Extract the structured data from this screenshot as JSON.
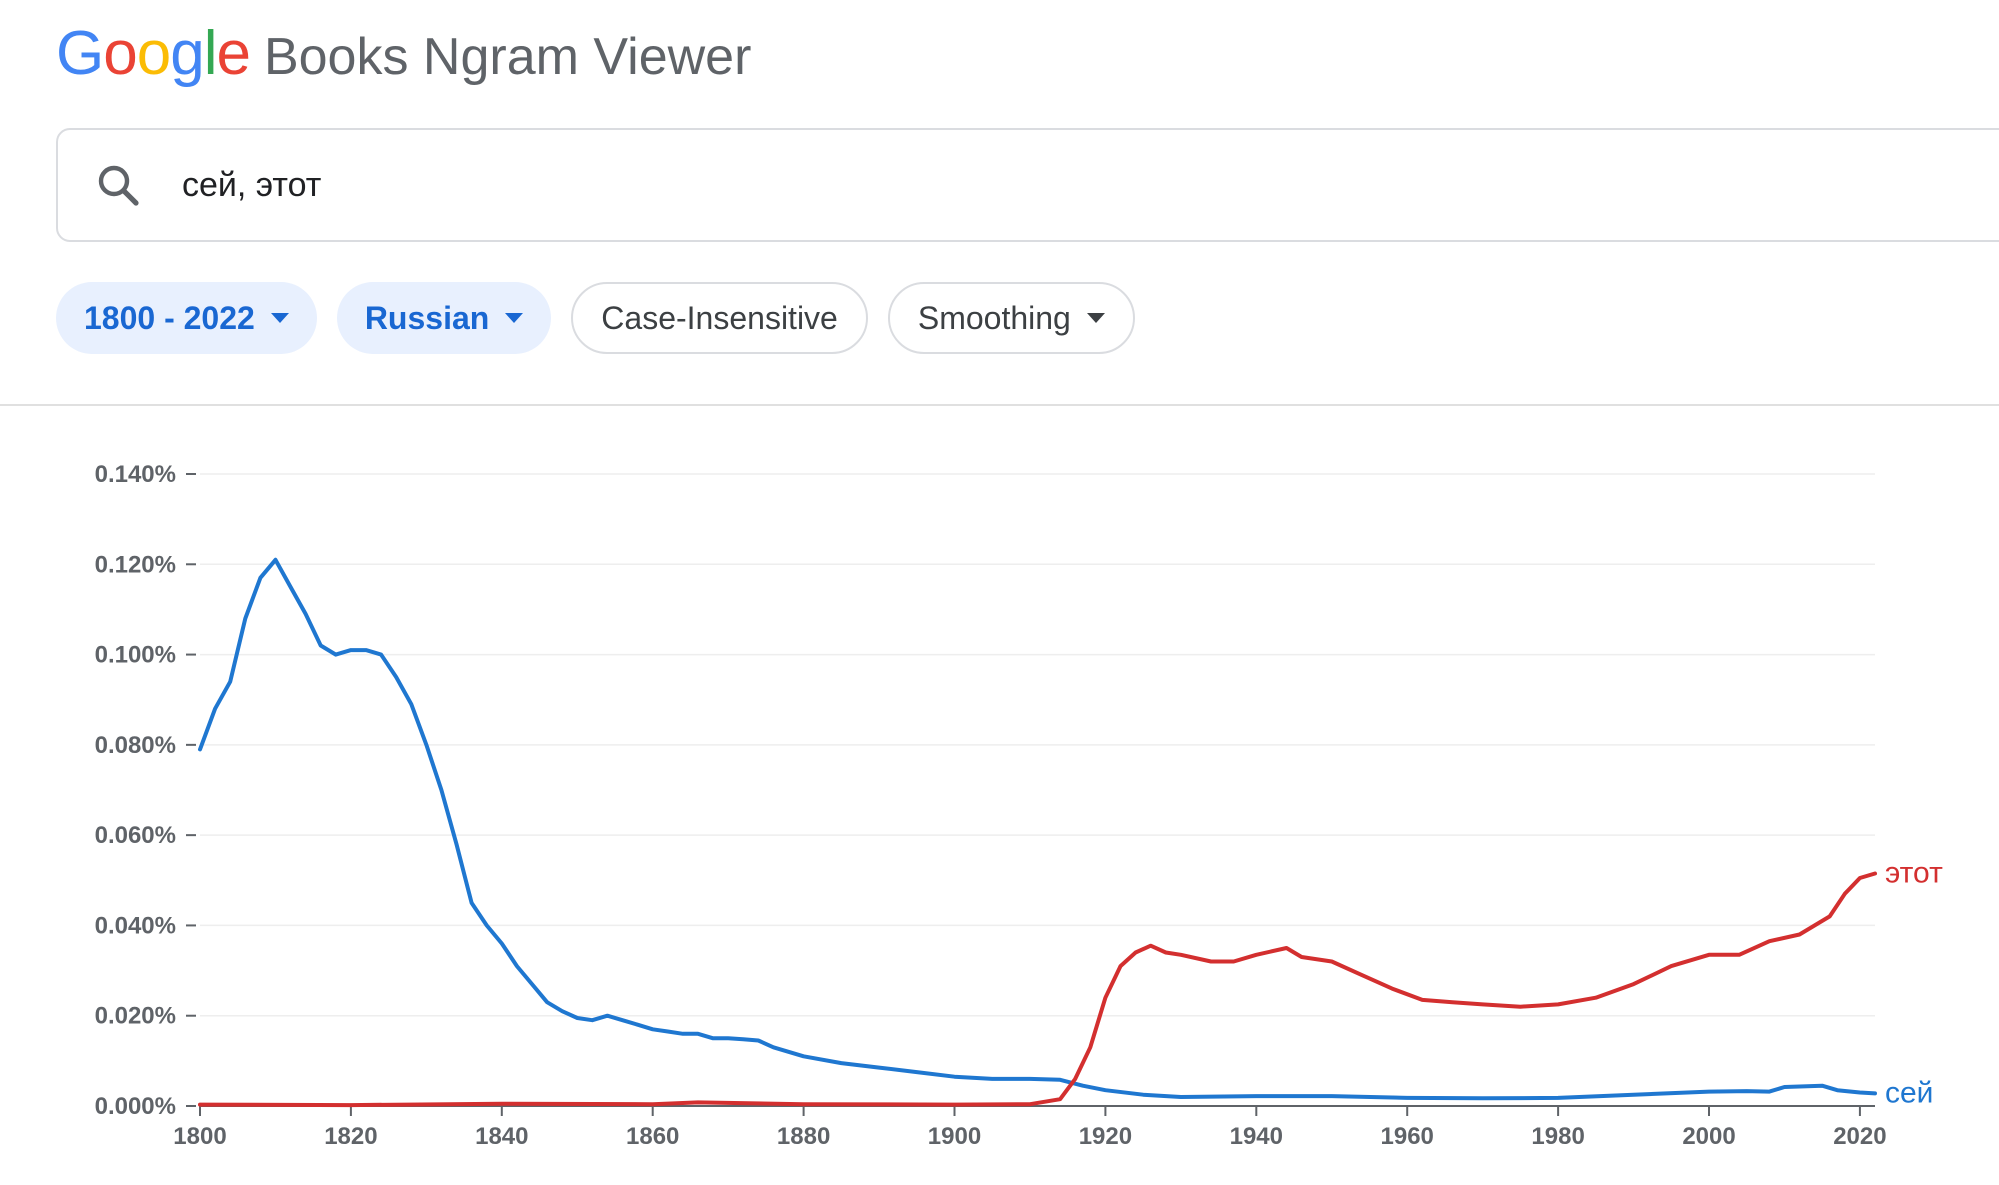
{
  "header": {
    "logo_text": "Google",
    "logo_colors": [
      "#4285F4",
      "#EA4335",
      "#FBBC05",
      "#4285F4",
      "#34A853",
      "#EA4335"
    ],
    "product_name": "Books Ngram Viewer"
  },
  "search": {
    "icon": "search-icon",
    "query": "сей, этот"
  },
  "filters": {
    "year_range": "1800 - 2022",
    "corpus": "Russian",
    "case_insensitive": "Case-Insensitive",
    "smoothing": "Smoothing"
  },
  "colors": {
    "accent_blue": "#1967d2",
    "chip_bg": "#e8f0fe",
    "series_blue": "#1f77d0",
    "series_red": "#d32f2f"
  },
  "chart_data": {
    "type": "line",
    "xlim": [
      1800,
      2022
    ],
    "ylim": [
      0,
      0.14
    ],
    "y_ticks": [
      "0.000%",
      "0.020%",
      "0.040%",
      "0.060%",
      "0.080%",
      "0.100%",
      "0.120%",
      "0.140%"
    ],
    "y_tick_values": [
      0,
      0.02,
      0.04,
      0.06,
      0.08,
      0.1,
      0.12,
      0.14
    ],
    "x_ticks": [
      1800,
      1820,
      1840,
      1860,
      1880,
      1900,
      1920,
      1940,
      1960,
      1980,
      2000,
      2020
    ],
    "grid": true,
    "series": [
      {
        "name": "сей",
        "color": "#1f77d0",
        "points": [
          [
            1800,
            0.079
          ],
          [
            1802,
            0.088
          ],
          [
            1804,
            0.094
          ],
          [
            1806,
            0.108
          ],
          [
            1808,
            0.117
          ],
          [
            1810,
            0.121
          ],
          [
            1812,
            0.115
          ],
          [
            1814,
            0.109
          ],
          [
            1816,
            0.102
          ],
          [
            1818,
            0.1
          ],
          [
            1820,
            0.101
          ],
          [
            1822,
            0.101
          ],
          [
            1824,
            0.1
          ],
          [
            1826,
            0.095
          ],
          [
            1828,
            0.089
          ],
          [
            1830,
            0.08
          ],
          [
            1832,
            0.07
          ],
          [
            1834,
            0.058
          ],
          [
            1836,
            0.045
          ],
          [
            1838,
            0.04
          ],
          [
            1840,
            0.036
          ],
          [
            1842,
            0.031
          ],
          [
            1844,
            0.027
          ],
          [
            1846,
            0.023
          ],
          [
            1848,
            0.021
          ],
          [
            1850,
            0.0195
          ],
          [
            1852,
            0.019
          ],
          [
            1854,
            0.02
          ],
          [
            1856,
            0.019
          ],
          [
            1858,
            0.018
          ],
          [
            1860,
            0.017
          ],
          [
            1862,
            0.0165
          ],
          [
            1864,
            0.016
          ],
          [
            1866,
            0.016
          ],
          [
            1868,
            0.015
          ],
          [
            1870,
            0.015
          ],
          [
            1872,
            0.0148
          ],
          [
            1874,
            0.0145
          ],
          [
            1876,
            0.013
          ],
          [
            1878,
            0.012
          ],
          [
            1880,
            0.011
          ],
          [
            1885,
            0.0095
          ],
          [
            1890,
            0.0085
          ],
          [
            1895,
            0.0075
          ],
          [
            1900,
            0.0065
          ],
          [
            1905,
            0.006
          ],
          [
            1910,
            0.006
          ],
          [
            1914,
            0.0058
          ],
          [
            1917,
            0.0045
          ],
          [
            1920,
            0.0035
          ],
          [
            1925,
            0.0025
          ],
          [
            1930,
            0.002
          ],
          [
            1940,
            0.0022
          ],
          [
            1950,
            0.0022
          ],
          [
            1960,
            0.0018
          ],
          [
            1970,
            0.0017
          ],
          [
            1980,
            0.0018
          ],
          [
            1990,
            0.0025
          ],
          [
            2000,
            0.0032
          ],
          [
            2005,
            0.0033
          ],
          [
            2008,
            0.0032
          ],
          [
            2010,
            0.0042
          ],
          [
            2015,
            0.0045
          ],
          [
            2017,
            0.0035
          ],
          [
            2020,
            0.003
          ],
          [
            2022,
            0.0028
          ]
        ]
      },
      {
        "name": "этот",
        "color": "#d32f2f",
        "points": [
          [
            1800,
            0.0003
          ],
          [
            1820,
            0.0002
          ],
          [
            1840,
            0.0005
          ],
          [
            1860,
            0.0004
          ],
          [
            1866,
            0.0008
          ],
          [
            1880,
            0.0004
          ],
          [
            1900,
            0.0003
          ],
          [
            1910,
            0.0004
          ],
          [
            1914,
            0.0015
          ],
          [
            1916,
            0.006
          ],
          [
            1918,
            0.013
          ],
          [
            1920,
            0.024
          ],
          [
            1922,
            0.031
          ],
          [
            1924,
            0.034
          ],
          [
            1926,
            0.0355
          ],
          [
            1928,
            0.034
          ],
          [
            1930,
            0.0335
          ],
          [
            1934,
            0.032
          ],
          [
            1937,
            0.032
          ],
          [
            1940,
            0.0335
          ],
          [
            1944,
            0.035
          ],
          [
            1946,
            0.033
          ],
          [
            1950,
            0.032
          ],
          [
            1954,
            0.029
          ],
          [
            1958,
            0.026
          ],
          [
            1962,
            0.0235
          ],
          [
            1966,
            0.023
          ],
          [
            1970,
            0.0225
          ],
          [
            1975,
            0.022
          ],
          [
            1980,
            0.0225
          ],
          [
            1985,
            0.024
          ],
          [
            1990,
            0.027
          ],
          [
            1995,
            0.031
          ],
          [
            2000,
            0.0335
          ],
          [
            2004,
            0.0335
          ],
          [
            2008,
            0.0365
          ],
          [
            2012,
            0.038
          ],
          [
            2016,
            0.042
          ],
          [
            2018,
            0.047
          ],
          [
            2020,
            0.0505
          ],
          [
            2022,
            0.0515
          ]
        ]
      }
    ]
  }
}
